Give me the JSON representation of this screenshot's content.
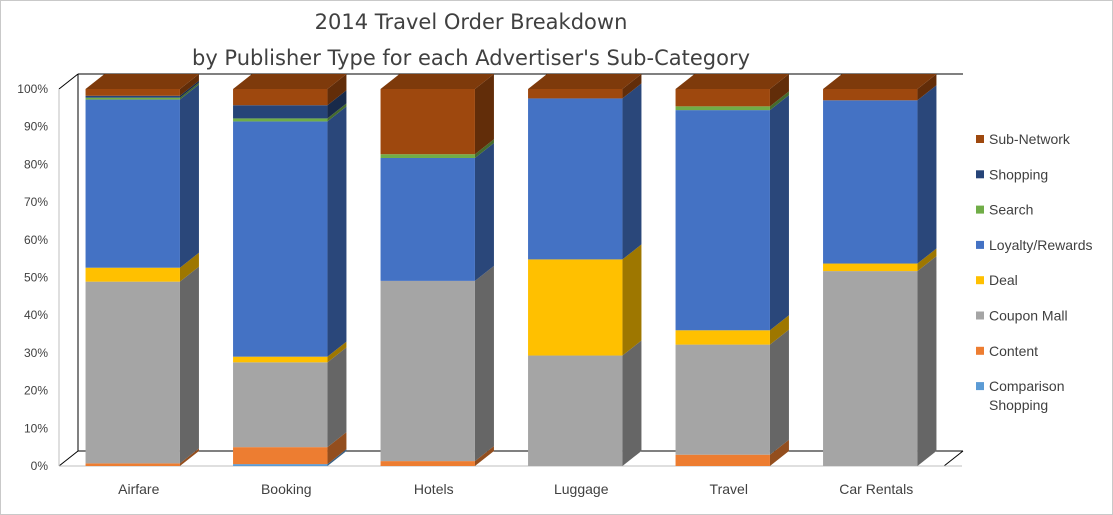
{
  "chart_data": {
    "type": "bar",
    "stacked": true,
    "style": "3d-stacked-column",
    "title_lines": [
      "2014 Travel Order Breakdown",
      "by Publisher Type for each Advertiser's Sub-Category"
    ],
    "xlabel": "",
    "ylabel": "",
    "ylim": [
      0,
      1
    ],
    "yticks": [
      "0%",
      "10%",
      "20%",
      "30%",
      "40%",
      "50%",
      "60%",
      "70%",
      "80%",
      "90%",
      "100%"
    ],
    "grid": false,
    "legend_position": "right",
    "categories": [
      "Airfare",
      "Booking",
      "Hotels",
      "Luggage",
      "Travel",
      "Car Rentals"
    ],
    "series": [
      {
        "name": "Comparison Shopping",
        "legend_lines": [
          "Comparison",
          "Shopping"
        ],
        "color": "#5B9BD5",
        "values": [
          0.0,
          0.005,
          0.0,
          0.0,
          0.0,
          0.0
        ]
      },
      {
        "name": "Content",
        "legend_lines": [
          "Content"
        ],
        "color": "#ED7D31",
        "values": [
          0.007,
          0.045,
          0.013,
          0.0,
          0.03,
          0.0
        ]
      },
      {
        "name": "Coupon Mall",
        "legend_lines": [
          "Coupon Mall"
        ],
        "color": "#A5A5A5",
        "values": [
          0.482,
          0.225,
          0.478,
          0.293,
          0.292,
          0.517
        ]
      },
      {
        "name": "Deal",
        "legend_lines": [
          "Deal"
        ],
        "color": "#FFC000",
        "values": [
          0.037,
          0.015,
          0.0,
          0.255,
          0.038,
          0.02
        ]
      },
      {
        "name": "Loyalty/Rewards",
        "legend_lines": [
          "Loyalty/Rewards"
        ],
        "color": "#4472C4",
        "values": [
          0.446,
          0.624,
          0.326,
          0.427,
          0.584,
          0.433
        ]
      },
      {
        "name": "Search",
        "legend_lines": [
          "Search"
        ],
        "color": "#70AD47",
        "values": [
          0.005,
          0.008,
          0.01,
          0.0,
          0.01,
          0.0
        ]
      },
      {
        "name": "Shopping",
        "legend_lines": [
          "Shopping"
        ],
        "color": "#264478",
        "values": [
          0.005,
          0.035,
          0.0,
          0.0,
          0.0,
          0.0
        ]
      },
      {
        "name": "Sub-Network",
        "legend_lines": [
          "Sub-Network"
        ],
        "color": "#9E480E",
        "values": [
          0.018,
          0.043,
          0.173,
          0.025,
          0.046,
          0.03
        ]
      }
    ]
  }
}
